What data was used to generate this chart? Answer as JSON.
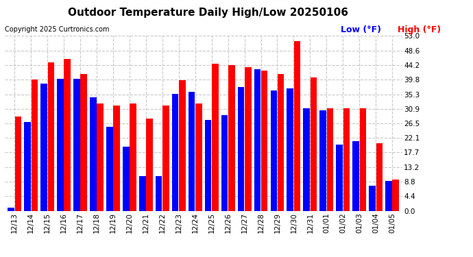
{
  "title": "Outdoor Temperature Daily High/Low 20250106",
  "copyright": "Copyright 2025 Curtronics.com",
  "dates": [
    "12/13",
    "12/14",
    "12/15",
    "12/16",
    "12/17",
    "12/18",
    "12/19",
    "12/20",
    "12/21",
    "12/22",
    "12/23",
    "12/24",
    "12/25",
    "12/26",
    "12/27",
    "12/28",
    "12/29",
    "12/30",
    "12/31",
    "01/01",
    "01/02",
    "01/03",
    "01/04",
    "01/05"
  ],
  "high": [
    28.5,
    39.8,
    45.0,
    46.0,
    41.5,
    32.5,
    32.0,
    32.5,
    28.0,
    32.0,
    39.5,
    32.5,
    44.5,
    44.2,
    43.5,
    42.5,
    41.5,
    51.5,
    40.5,
    31.0,
    31.0,
    31.0,
    20.5,
    9.5
  ],
  "low": [
    1.0,
    27.0,
    38.5,
    40.0,
    40.0,
    34.5,
    25.5,
    19.5,
    10.5,
    10.5,
    35.5,
    36.0,
    27.5,
    29.0,
    37.5,
    43.0,
    36.5,
    37.0,
    31.0,
    30.5,
    20.0,
    21.0,
    7.5,
    9.0
  ],
  "yticks": [
    0.0,
    4.4,
    8.8,
    13.2,
    17.7,
    22.1,
    26.5,
    30.9,
    35.3,
    39.8,
    44.2,
    48.6,
    53.0
  ],
  "ymax": 53.0,
  "ymin": 0.0,
  "bar_color_high": "#ff0000",
  "bar_color_low": "#0000ff",
  "background_color": "#ffffff",
  "grid_color": "#c8c8c8",
  "title_fontsize": 11,
  "copyright_fontsize": 7,
  "legend_fontsize": 9,
  "tick_fontsize": 7.5
}
